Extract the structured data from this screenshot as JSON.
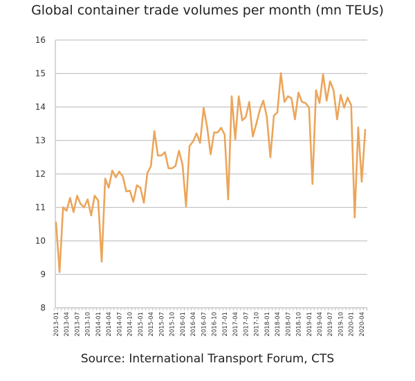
{
  "chart_data": {
    "type": "line",
    "title": "Global container trade volumes per month (mn TEUs)",
    "source": "Source: International Transport Forum, CTS",
    "xlabel": "",
    "ylabel": "",
    "ylim": [
      8,
      16
    ],
    "yticks": [
      "8",
      "9",
      "10",
      "11",
      "12",
      "13",
      "14",
      "15",
      "16"
    ],
    "grid": true,
    "legend": "none",
    "line_color": "#EBA55A",
    "x_start": "2013-01",
    "x_end": "2020-05",
    "xtick_labels": [
      "2013-01",
      "2013-04",
      "2013-07",
      "2013-10",
      "2014-01",
      "2014-04",
      "2014-07",
      "2014-10",
      "2015-01",
      "2015-04",
      "2015-07",
      "2015-10",
      "2016-01",
      "2016-04",
      "2016-07",
      "2016-10",
      "2017-01",
      "2017-04",
      "2017-07",
      "2017-10",
      "2018-01",
      "2018-04",
      "2018-07",
      "2018-10",
      "2019-01",
      "2019-04",
      "2019-07",
      "2019-10",
      "2020-01",
      "2020-04"
    ],
    "values": [
      10.55,
      9.07,
      11.0,
      10.9,
      11.28,
      10.86,
      11.35,
      11.1,
      11.0,
      11.24,
      10.76,
      11.35,
      11.2,
      9.38,
      11.86,
      11.59,
      12.1,
      11.9,
      12.07,
      11.93,
      11.48,
      11.5,
      11.17,
      11.66,
      11.59,
      11.14,
      12.03,
      12.23,
      13.28,
      12.55,
      12.55,
      12.65,
      12.17,
      12.17,
      12.24,
      12.69,
      12.28,
      11.03,
      12.83,
      12.97,
      13.21,
      12.93,
      13.97,
      13.41,
      12.59,
      13.24,
      13.24,
      13.38,
      13.17,
      11.24,
      14.32,
      13.04,
      14.32,
      13.6,
      13.7,
      14.15,
      13.12,
      13.5,
      13.91,
      14.19,
      13.7,
      12.5,
      13.74,
      13.84,
      15.01,
      14.15,
      14.32,
      14.26,
      13.63,
      14.43,
      14.15,
      14.12,
      13.98,
      11.7,
      14.5,
      14.12,
      14.98,
      14.19,
      14.77,
      14.5,
      13.63,
      14.36,
      13.98,
      14.28,
      14.05,
      10.7,
      13.39,
      11.77,
      13.32
    ]
  }
}
